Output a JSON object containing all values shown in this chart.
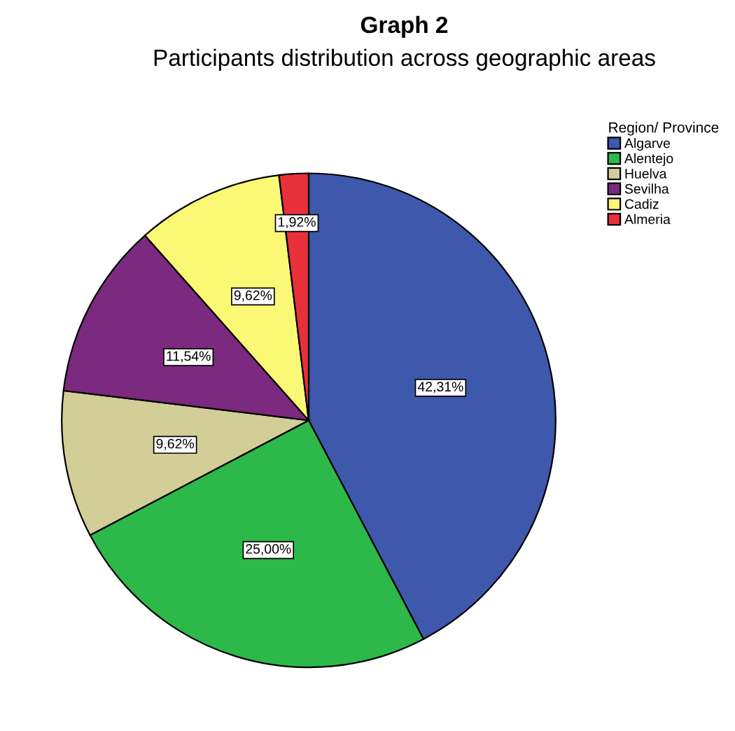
{
  "chart_data": {
    "type": "pie",
    "title": "Graph 2",
    "subtitle": "Participants distribution across geographic areas",
    "legend_title": "Region/ Province",
    "legend": "top right",
    "categories": [
      "Algarve",
      "Alentejo",
      "Huelva",
      "Sevilha",
      "Cadiz",
      "Almeria"
    ],
    "values": [
      42.31,
      25.0,
      9.62,
      11.54,
      9.62,
      1.92
    ],
    "colors": [
      "#3e58ac",
      "#2db84a",
      "#d3ce98",
      "#7b2a7f",
      "#fbf876",
      "#e8303a"
    ],
    "value_labels": [
      "42,31%",
      "25,00%",
      "9,62%",
      "11,54%",
      "9,62%",
      "1,92%"
    ]
  }
}
